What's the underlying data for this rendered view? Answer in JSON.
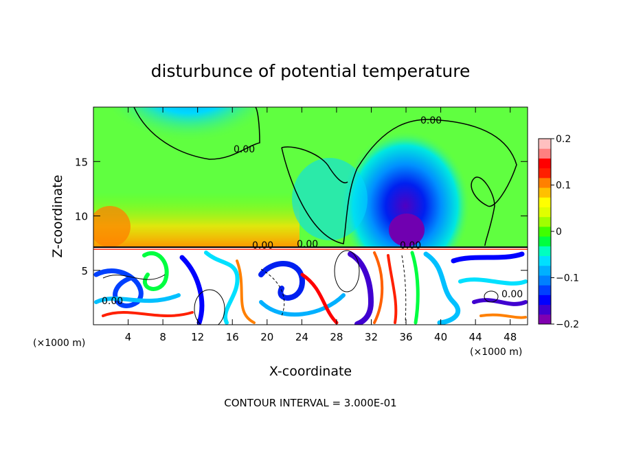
{
  "chart_data": {
    "type": "heatmap",
    "title": "disturbunce of potential temperature",
    "xlabel": "X-coordinate",
    "ylabel": "Z-coordinate",
    "x_unit": "(×1000 m)",
    "y_unit": "(×1000 m)",
    "x_ticks": [
      4,
      8,
      12,
      16,
      20,
      24,
      28,
      32,
      36,
      40,
      44,
      48
    ],
    "y_ticks": [
      5,
      10,
      15
    ],
    "xlim": [
      0,
      50
    ],
    "ylim": [
      0,
      20
    ],
    "colorbar": {
      "ticks": [
        0.2,
        0.1,
        0,
        -0.1,
        -0.2
      ],
      "tick_labels": [
        "0.2",
        "0.1",
        "0",
        "−0.1",
        "−0.2"
      ],
      "range": [
        -0.2,
        0.2
      ],
      "colors": [
        "#8000b0",
        "#4000d0",
        "#0000ff",
        "#0040ff",
        "#0080ff",
        "#00b0ff",
        "#00e0ff",
        "#00ffc0",
        "#00ff40",
        "#40ff00",
        "#a0ff00",
        "#e0ff00",
        "#ffff00",
        "#ffc000",
        "#ff8000",
        "#ff2000",
        "#ff0000",
        "#ff8080",
        "#ffc0c0"
      ]
    },
    "contour_labels": [
      "0.00",
      "0.00",
      "0.00",
      "0.00",
      "0.00",
      "0.00",
      "0.00"
    ],
    "footer": "CONTOUR INTERVAL = 3.000E-01"
  }
}
